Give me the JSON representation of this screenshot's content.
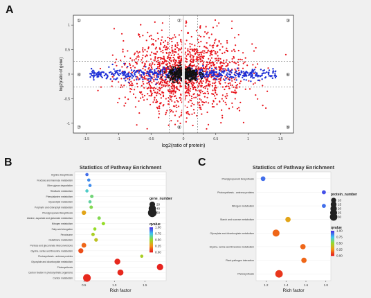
{
  "panels": {
    "a": "A",
    "b": "B",
    "c": "C"
  },
  "chart_data": [
    {
      "type": "scatter",
      "panel": "A",
      "xlabel": "log2(ratio of protein)",
      "ylabel": "log2(ratio of gene)",
      "x_ticks": [
        "-1.5",
        "-1",
        "-0.5",
        "0",
        "0.5",
        "1",
        "1.5"
      ],
      "y_ticks": [
        "1",
        "0.5",
        "0",
        "-0.5",
        "-1"
      ],
      "xlim": [
        -1.7,
        1.7
      ],
      "ylim": [
        -1.2,
        1.2
      ],
      "quadrant_labels": [
        "①",
        "②",
        "③",
        "④",
        "⑤",
        "⑥",
        "⑦",
        "⑧",
        "⑨"
      ],
      "grid": false,
      "series": [
        {
          "color": "#e8141c"
        },
        {
          "color": "#1d2fd6"
        },
        {
          "color": "#111111"
        }
      ]
    },
    {
      "type": "scatter",
      "panel": "B",
      "title": "Statistics of Pathway Enrichment",
      "xlabel": "Rich factor",
      "x_ticks": [
        "0.5",
        "1.0",
        "1.5"
      ],
      "xlim": [
        0.35,
        1.85
      ],
      "categories": [
        "Arginine biosynthesis",
        "Fructose and mannose metabolism",
        "Other glycan degradation",
        "Riboflavin metabolism",
        "Phenylalanine metabolism",
        "Glycerolipid metabolism",
        "Porphyrin and chlorophyll metabolism",
        "Phenylpropanoid biosynthesis",
        "Alanine, aspartate and glutamate metabolism",
        "Nitrogen metabolism",
        "Fatty acid elongation",
        "Peroxisome",
        "Glutathione metabolism",
        "Pentose and glucuronate interconversions",
        "Glycine, serine and threonine metabolism",
        "Photosynthesis - antenna proteins",
        "Glyoxylate and dicarboxylate metabolism",
        "Photosynthesis",
        "Carbon fixation in photosynthetic organisms",
        "Carbon metabolism"
      ],
      "x": [
        0.55,
        0.58,
        0.6,
        0.55,
        0.63,
        0.6,
        0.62,
        0.5,
        0.75,
        0.82,
        0.68,
        0.65,
        0.7,
        0.5,
        0.45,
        1.45,
        1.05,
        1.75,
        1.1,
        0.55
      ],
      "gene_number": [
        3,
        3,
        3,
        3,
        4,
        3,
        4,
        10,
        4,
        4,
        3,
        4,
        5,
        12,
        14,
        3,
        22,
        28,
        24,
        45
      ],
      "qvalue": [
        0.9,
        0.85,
        0.85,
        0.7,
        0.6,
        0.65,
        0.55,
        0.3,
        0.55,
        0.5,
        0.5,
        0.45,
        0.4,
        0.15,
        0.1,
        0.45,
        0.02,
        0.01,
        0.02,
        0.02
      ],
      "legend_size": {
        "title": "gene_number",
        "values": [
          "20",
          "40",
          "60"
        ],
        "sizes": [
          20,
          40,
          60
        ]
      },
      "legend_color": {
        "title": "qvalue",
        "ticks": [
          "1.00",
          "0.75",
          "0.50",
          "0.25",
          "0.00"
        ]
      }
    },
    {
      "type": "scatter",
      "panel": "C",
      "title": "Statistics of Pathway Enrichment",
      "xlabel": "Rich factor",
      "x_ticks": [
        "1.2",
        "1.4",
        "1.6",
        "1.8"
      ],
      "xlim": [
        1.1,
        1.85
      ],
      "categories": [
        "Phenylpropanoid biosynthesis",
        "Photosynthesis - antenna proteins",
        "Nitrogen metabolism",
        "Starch and sucrose metabolism",
        "Glyoxylate and dicarboxylate metabolism",
        "Glycine, serine and threonine metabolism",
        "Plant-pathogen interaction",
        "Photosynthesis"
      ],
      "x": [
        1.17,
        1.78,
        1.78,
        1.42,
        1.3,
        1.57,
        1.58,
        1.33
      ],
      "protein_number": [
        8,
        5,
        5,
        12,
        25,
        12,
        12,
        30
      ],
      "qvalue": [
        0.9,
        0.95,
        0.9,
        0.3,
        0.15,
        0.15,
        0.15,
        0.05
      ],
      "legend_size": {
        "title": "protein_number",
        "values": [
          "10",
          "15",
          "20",
          "25",
          "30"
        ],
        "sizes": [
          10,
          15,
          20,
          25,
          30
        ]
      },
      "legend_color": {
        "title": "qvalue",
        "ticks": [
          "1.00",
          "0.75",
          "0.50",
          "0.25",
          "0.00"
        ]
      }
    }
  ]
}
